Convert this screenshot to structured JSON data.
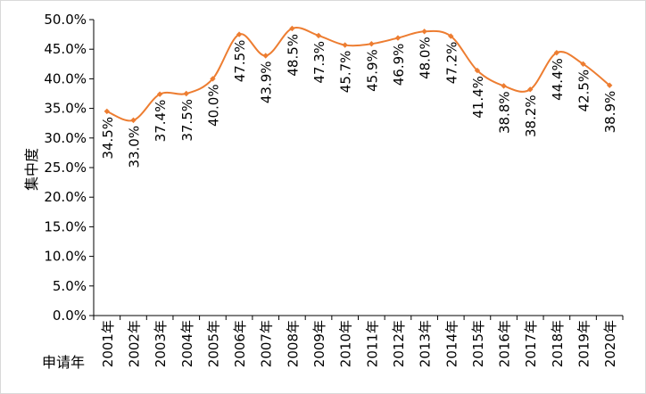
{
  "chart_data": {
    "type": "line",
    "title": "",
    "xlabel": "申请年",
    "ylabel": "集中度",
    "ylim": [
      0,
      50
    ],
    "y_unit": "%",
    "yticks": [
      "0.0%",
      "5.0%",
      "10.0%",
      "15.0%",
      "20.0%",
      "25.0%",
      "30.0%",
      "35.0%",
      "40.0%",
      "45.0%",
      "50.0%"
    ],
    "grid": false,
    "legend": "none",
    "line_color": "#ED7D31",
    "categories": [
      "2001年",
      "2002年",
      "2003年",
      "2004年",
      "2005年",
      "2006年",
      "2007年",
      "2008年",
      "2009年",
      "2010年",
      "2011年",
      "2012年",
      "2013年",
      "2014年",
      "2015年",
      "2016年",
      "2017年",
      "2018年",
      "2019年",
      "2020年"
    ],
    "values": [
      34.5,
      33.0,
      37.4,
      37.5,
      40.0,
      47.5,
      43.9,
      48.5,
      47.3,
      45.7,
      45.9,
      46.9,
      48.0,
      47.2,
      41.4,
      38.8,
      38.2,
      44.4,
      42.5,
      38.9
    ],
    "data_labels": [
      "34.5%",
      "33.0%",
      "37.4%",
      "37.5%",
      "40.0%",
      "47.5%",
      "43.9%",
      "48.5%",
      "47.3%",
      "45.7%",
      "45.9%",
      "46.9%",
      "48.0%",
      "47.2%",
      "41.4%",
      "38.8%",
      "38.2%",
      "44.4%",
      "42.5%",
      "38.9%"
    ]
  }
}
